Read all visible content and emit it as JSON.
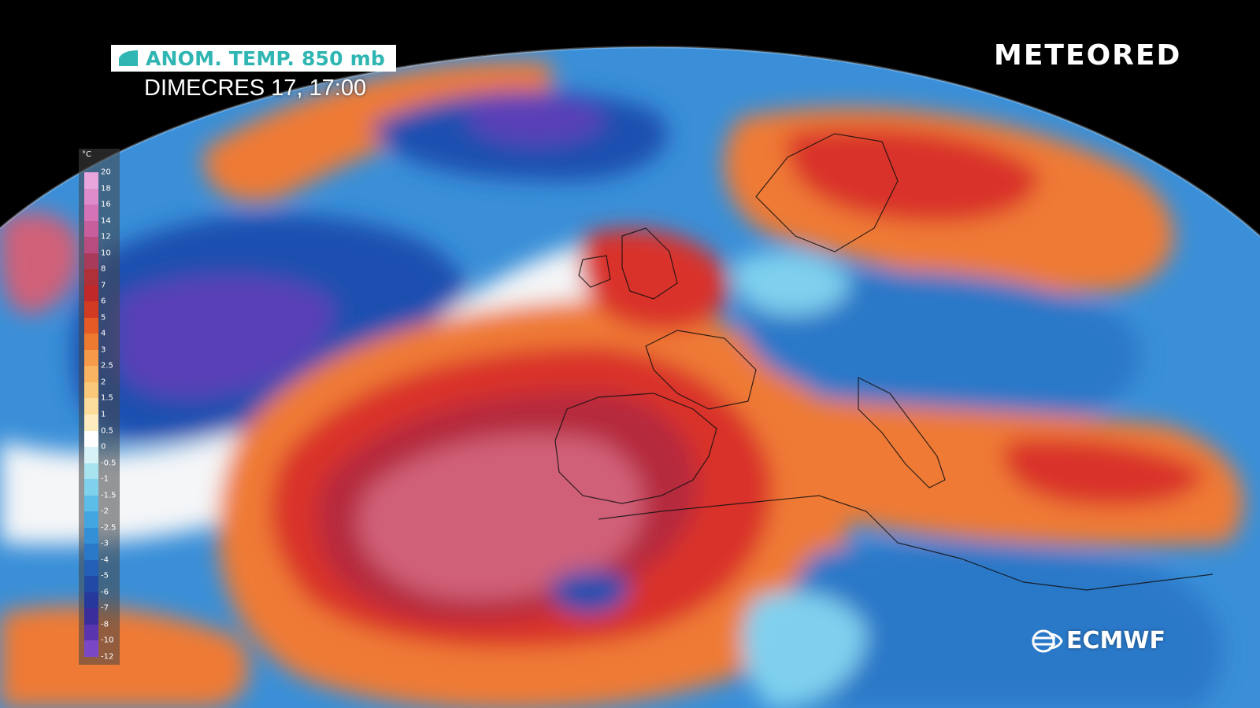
{
  "header": {
    "title": "ANOM. TEMP. 850 mb",
    "datetime": "DIMECRES 17, 17:00"
  },
  "brand": {
    "name": "METEORED"
  },
  "source": {
    "name": "ECMWF"
  },
  "legend": {
    "unit": "°C",
    "ticks": [
      "20",
      "18",
      "16",
      "14",
      "12",
      "10",
      "8",
      "7",
      "6",
      "5",
      "4",
      "3",
      "2.5",
      "2",
      "1.5",
      "1",
      "0.5",
      "0",
      "-0.5",
      "-1",
      "-1.5",
      "-2",
      "-2.5",
      "-3",
      "-4",
      "-5",
      "-6",
      "-7",
      "-8",
      "-10",
      "-12"
    ],
    "colors": [
      "#e9a6dc",
      "#de8cca",
      "#d474b6",
      "#c85f9d",
      "#b84c7e",
      "#a83a5a",
      "#b0303a",
      "#c0282a",
      "#d33a22",
      "#e55a25",
      "#ee7a30",
      "#f59a48",
      "#f8b460",
      "#f9c878",
      "#fbdc9a",
      "#fdecc0",
      "#ffffff",
      "#d8f3f7",
      "#a8e3f0",
      "#80d2ec",
      "#5cbde8",
      "#44a6e0",
      "#3490d6",
      "#2a78c8",
      "#2460b8",
      "#204aa4",
      "#26389a",
      "#3a2e9a",
      "#5a34ae",
      "#7a48c6"
    ]
  },
  "map": {
    "colors": {
      "ocean_base": "#3a8fd8",
      "deep_blue": "#1f4fb0",
      "purple": "#5a3fb8",
      "light_blue": "#7fd0ee",
      "white": "#f4f6f8",
      "orange": "#ef7a35",
      "red": "#d9332a",
      "dark_red": "#b52a3c",
      "rose": "#d06078"
    }
  }
}
